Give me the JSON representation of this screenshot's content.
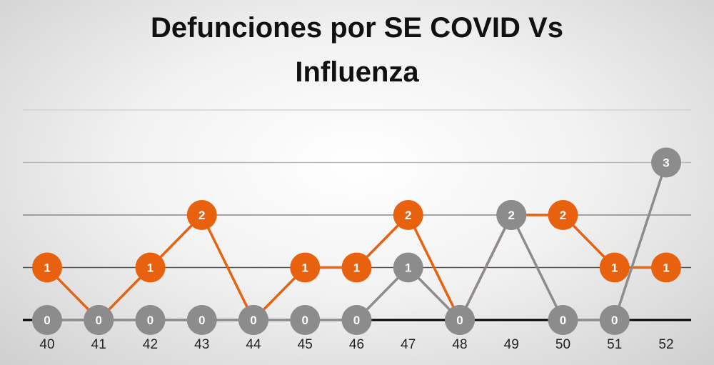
{
  "chart_data": {
    "type": "line",
    "title_lines": [
      "Defunciones por SE COVID Vs",
      "Influenza"
    ],
    "categories": [
      "40",
      "41",
      "42",
      "43",
      "44",
      "45",
      "46",
      "47",
      "48",
      "49",
      "50",
      "51",
      "52"
    ],
    "ylim": [
      0,
      4
    ],
    "grid": true,
    "series": [
      {
        "values": [
          1,
          0,
          1,
          2,
          0,
          1,
          1,
          2,
          0,
          2,
          2,
          1,
          1
        ],
        "color": "#E8610F"
      },
      {
        "values": [
          0,
          0,
          0,
          0,
          0,
          0,
          0,
          1,
          0,
          2,
          0,
          0,
          3
        ],
        "color": "#8C8C8C"
      }
    ]
  }
}
